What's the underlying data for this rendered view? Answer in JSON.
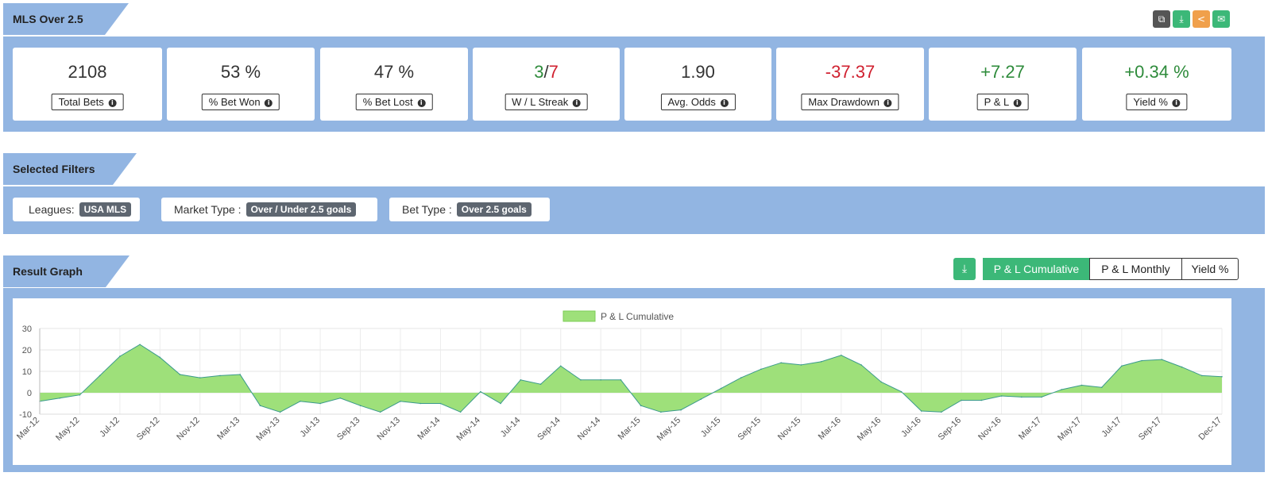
{
  "header": {
    "title": "MLS Over 2.5",
    "actions": [
      {
        "icon": "copy-icon",
        "color": "#555555"
      },
      {
        "icon": "download-icon",
        "color": "#3cb878"
      },
      {
        "icon": "share-icon",
        "color": "#f0a04b"
      },
      {
        "icon": "email-icon",
        "color": "#3cb878"
      }
    ]
  },
  "stats": [
    {
      "value": "2108",
      "label": "Total Bets"
    },
    {
      "value": "53 %",
      "label": "% Bet Won"
    },
    {
      "value": "47 %",
      "label": "% Bet Lost"
    },
    {
      "value_win": "3",
      "value_sep": "/",
      "value_loss": "7",
      "label": "W / L Streak"
    },
    {
      "value": "1.90",
      "label": "Avg. Odds"
    },
    {
      "value": "-37.37",
      "label": "Max Drawdown"
    },
    {
      "value": "+7.27",
      "label": "P & L"
    },
    {
      "value": "+0.34 %",
      "label": "Yield %"
    }
  ],
  "filters": {
    "title": "Selected Filters",
    "items": [
      {
        "label": "Leagues:",
        "tag": "USA MLS"
      },
      {
        "label": "Market Type :",
        "tag": "Over / Under 2.5 goals"
      },
      {
        "label": "Bet Type :",
        "tag": "Over 2.5 goals"
      }
    ]
  },
  "graph": {
    "title": "Result Graph",
    "tabs": [
      "P & L Cumulative",
      "P & L Monthly",
      "Yield %"
    ],
    "active_tab": "P & L Cumulative"
  },
  "colors": {
    "accent": "#3cb878",
    "panel": "#92b5e2",
    "positive": "#2e8b3b",
    "negative": "#d0202f",
    "area": "#9ee07a"
  },
  "chart_data": {
    "type": "area",
    "legend": "P & L Cumulative",
    "ylim": [
      -10,
      30
    ],
    "yticks": [
      30,
      20,
      10,
      0,
      -10
    ],
    "x_tick_labels": [
      "Mar-12",
      "May-12",
      "Jul-12",
      "Sep-12",
      "Nov-12",
      "Mar-13",
      "May-13",
      "Jul-13",
      "Sep-13",
      "Nov-13",
      "Mar-14",
      "May-14",
      "Jul-14",
      "Sep-14",
      "Nov-14",
      "Mar-15",
      "May-15",
      "Jul-15",
      "Sep-15",
      "Nov-15",
      "Mar-16",
      "May-16",
      "Jul-16",
      "Sep-16",
      "Nov-16",
      "Mar-17",
      "May-17",
      "Jul-17",
      "Sep-17",
      "Dec-17"
    ],
    "x": [
      "Mar-12",
      "Apr-12",
      "May-12",
      "Jun-12",
      "Jul-12",
      "Aug-12",
      "Sep-12",
      "Oct-12",
      "Nov-12",
      "Dec-12",
      "Mar-13",
      "Apr-13",
      "May-13",
      "Jun-13",
      "Jul-13",
      "Aug-13",
      "Sep-13",
      "Oct-13",
      "Nov-13",
      "Dec-13",
      "Mar-14",
      "Apr-14",
      "May-14",
      "Jun-14",
      "Jul-14",
      "Aug-14",
      "Sep-14",
      "Oct-14",
      "Nov-14",
      "Dec-14",
      "Mar-15",
      "Apr-15",
      "May-15",
      "Jun-15",
      "Jul-15",
      "Aug-15",
      "Sep-15",
      "Oct-15",
      "Nov-15",
      "Dec-15",
      "Mar-16",
      "Apr-16",
      "May-16",
      "Jun-16",
      "Jul-16",
      "Aug-16",
      "Sep-16",
      "Oct-16",
      "Nov-16",
      "Dec-16",
      "Mar-17",
      "Apr-17",
      "May-17",
      "Jun-17",
      "Jul-17",
      "Aug-17",
      "Sep-17",
      "Oct-17",
      "Nov-17",
      "Dec-17"
    ],
    "values": [
      -4,
      -2.5,
      -1,
      8,
      17,
      22.5,
      16.5,
      8.5,
      7,
      8,
      8.5,
      -6,
      -9,
      -4,
      -5,
      -2.5,
      -6,
      -9,
      -4,
      -5,
      -5,
      -9,
      0.5,
      -5,
      6,
      4,
      12.5,
      6,
      6,
      6,
      -6,
      -9,
      -8,
      -3,
      2,
      7,
      11,
      14,
      13,
      14.5,
      17.5,
      13,
      5,
      0.5,
      -8.5,
      -9,
      -3.5,
      -3.5,
      -1.5,
      -2,
      -2,
      1.5,
      3.5,
      2.5,
      12.5,
      15,
      15.5,
      12,
      8,
      7.5
    ],
    "grid": true,
    "legend_position": "top-center"
  }
}
